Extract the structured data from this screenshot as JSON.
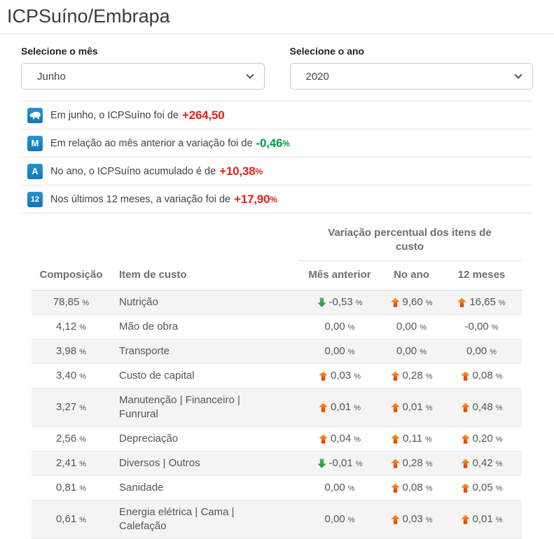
{
  "title": "ICPSuíno/Embrapa",
  "filters": {
    "month": {
      "label": "Selecione o mês",
      "value": "Junho"
    },
    "year": {
      "label": "Selecione o ano",
      "value": "2020"
    }
  },
  "summary": [
    {
      "icon": "pig-icon",
      "badge": "",
      "text": "Em junho, o ICPSuíno foi de",
      "value": "+264,50",
      "unit": "",
      "color": "red"
    },
    {
      "icon": "month-badge-icon",
      "badge": "M",
      "text": "Em relação ao mês anterior a variação foi de",
      "value": "-0,46",
      "unit": "%",
      "color": "green"
    },
    {
      "icon": "year-badge-icon",
      "badge": "A",
      "text": "No ano, o ICPSuíno acumulado é de",
      "value": "+10,38",
      "unit": "%",
      "color": "red"
    },
    {
      "icon": "twelve-months-badge-icon",
      "badge": "12",
      "text": "Nos últimos 12 meses, a variação foi de",
      "value": "+17,90",
      "unit": "%",
      "color": "red"
    }
  ],
  "table": {
    "group_header": "Variação percentual dos itens de custo",
    "unit": "%",
    "columns": {
      "composition": "Composição",
      "item": "Item de custo",
      "month": "Mês anterior",
      "year": "No ano",
      "twelve": "12 meses"
    },
    "rows": [
      {
        "composition": "78,85",
        "item": "Nutrição",
        "cells": [
          {
            "value": "-0,53",
            "arrow": "down"
          },
          {
            "value": "9,60",
            "arrow": "up"
          },
          {
            "value": "16,65",
            "arrow": "up"
          }
        ]
      },
      {
        "composition": "4,12",
        "item": "Mão de obra",
        "cells": [
          {
            "value": "0,00",
            "arrow": null
          },
          {
            "value": "0,00",
            "arrow": null
          },
          {
            "value": "-0,00",
            "arrow": null
          }
        ]
      },
      {
        "composition": "3,98",
        "item": "Transporte",
        "cells": [
          {
            "value": "0,00",
            "arrow": null
          },
          {
            "value": "0,00",
            "arrow": null
          },
          {
            "value": "0,00",
            "arrow": null
          }
        ]
      },
      {
        "composition": "3,40",
        "item": "Custo de capital",
        "cells": [
          {
            "value": "0,03",
            "arrow": "up"
          },
          {
            "value": "0,28",
            "arrow": "up"
          },
          {
            "value": "0,08",
            "arrow": "up"
          }
        ]
      },
      {
        "composition": "3,27",
        "item": "Manutenção | Financeiro | Funrural",
        "cells": [
          {
            "value": "0,01",
            "arrow": "up"
          },
          {
            "value": "0,01",
            "arrow": "up"
          },
          {
            "value": "0,48",
            "arrow": "up"
          }
        ]
      },
      {
        "composition": "2,56",
        "item": "Depreciação",
        "cells": [
          {
            "value": "0,04",
            "arrow": "up"
          },
          {
            "value": "0,11",
            "arrow": "up"
          },
          {
            "value": "0,20",
            "arrow": "up"
          }
        ]
      },
      {
        "composition": "2,41",
        "item": "Diversos | Outros",
        "cells": [
          {
            "value": "-0,01",
            "arrow": "down"
          },
          {
            "value": "0,28",
            "arrow": "up"
          },
          {
            "value": "0,42",
            "arrow": "up"
          }
        ]
      },
      {
        "composition": "0,81",
        "item": "Sanidade",
        "cells": [
          {
            "value": "0,00",
            "arrow": null
          },
          {
            "value": "0,08",
            "arrow": "up"
          },
          {
            "value": "0,05",
            "arrow": "up"
          }
        ]
      },
      {
        "composition": "0,61",
        "item": "Energia elétrica | Cama | Calefação",
        "cells": [
          {
            "value": "0,00",
            "arrow": null
          },
          {
            "value": "0,03",
            "arrow": "up"
          },
          {
            "value": "0,01",
            "arrow": "up"
          }
        ]
      }
    ]
  },
  "colors": {
    "accent_blue": "#1b86c8",
    "negative_red": "#e2231a",
    "positive_green": "#009c4a",
    "arrow_up_top": "#ffa51f",
    "arrow_up_bottom": "#e63005",
    "arrow_down_top": "#45c05a",
    "arrow_down_bottom": "#0e9737",
    "header_gray": "#6e6e6e",
    "row_alt_bg": "#f4f4f4"
  }
}
